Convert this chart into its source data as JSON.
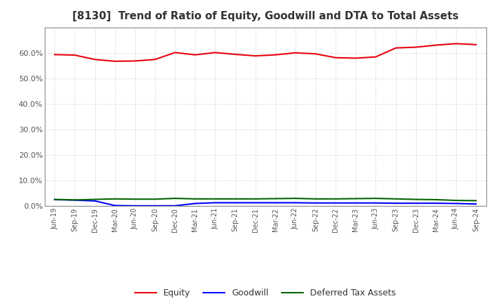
{
  "title": "[8130]  Trend of Ratio of Equity, Goodwill and DTA to Total Assets",
  "x_labels": [
    "Jun-19",
    "Sep-19",
    "Dec-19",
    "Mar-20",
    "Jun-20",
    "Sep-20",
    "Dec-20",
    "Mar-21",
    "Jun-21",
    "Sep-21",
    "Dec-21",
    "Mar-22",
    "Jun-22",
    "Sep-22",
    "Dec-22",
    "Mar-23",
    "Jun-23",
    "Sep-23",
    "Dec-23",
    "Mar-24",
    "Jun-24",
    "Sep-24"
  ],
  "equity": [
    0.593,
    0.591,
    0.574,
    0.567,
    0.568,
    0.574,
    0.601,
    0.592,
    0.601,
    0.594,
    0.588,
    0.592,
    0.6,
    0.596,
    0.581,
    0.579,
    0.584,
    0.619,
    0.622,
    0.63,
    0.636,
    0.632
  ],
  "goodwill": [
    0.025,
    0.023,
    0.02,
    0.002,
    0.001,
    0.001,
    0.001,
    0.01,
    0.013,
    0.013,
    0.013,
    0.013,
    0.013,
    0.012,
    0.012,
    0.012,
    0.012,
    0.011,
    0.011,
    0.011,
    0.01,
    0.008
  ],
  "dta": [
    0.026,
    0.024,
    0.026,
    0.028,
    0.027,
    0.027,
    0.03,
    0.028,
    0.028,
    0.028,
    0.028,
    0.029,
    0.03,
    0.028,
    0.028,
    0.029,
    0.03,
    0.028,
    0.026,
    0.025,
    0.022,
    0.021
  ],
  "equity_color": "#e8000d",
  "goodwill_color": "#0000ff",
  "dta_color": "#006400",
  "ylim": [
    0.0,
    0.7
  ],
  "yticks": [
    0.0,
    0.1,
    0.2,
    0.3,
    0.4,
    0.5,
    0.6
  ],
  "background_color": "#ffffff",
  "plot_bg_color": "#ffffff",
  "grid_color": "#aaaaaa",
  "title_fontsize": 11,
  "legend_labels": [
    "Equity",
    "Goodwill",
    "Deferred Tax Assets"
  ]
}
